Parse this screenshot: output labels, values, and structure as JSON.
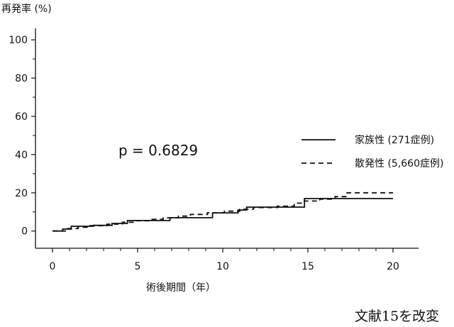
{
  "chart_data": {
    "type": "line",
    "ylabel": "再発率 (%)",
    "xlabel": "術後期間（年）",
    "x_ticks": [
      0,
      5,
      10,
      15,
      20
    ],
    "y_ticks": [
      0,
      20,
      40,
      60,
      80,
      100
    ],
    "xlim": [
      -1,
      21.5
    ],
    "ylim": [
      -9,
      106
    ],
    "grid": false,
    "legend_position": "right",
    "annotation": "p = 0.6829",
    "series": [
      {
        "name": "家族性 (271症例)",
        "style": "solid",
        "color": "#111111",
        "points": [
          [
            0,
            0
          ],
          [
            0.6,
            0
          ],
          [
            0.6,
            1
          ],
          [
            1.1,
            1
          ],
          [
            1.1,
            2.5
          ],
          [
            2.4,
            2.5
          ],
          [
            2.4,
            3
          ],
          [
            3.5,
            3
          ],
          [
            3.5,
            4
          ],
          [
            4.4,
            4
          ],
          [
            4.4,
            5.5
          ],
          [
            6.9,
            5.5
          ],
          [
            6.9,
            7
          ],
          [
            9.4,
            7
          ],
          [
            9.4,
            9.5
          ],
          [
            10.9,
            9.5
          ],
          [
            10.9,
            11
          ],
          [
            11.4,
            11
          ],
          [
            11.4,
            12.5
          ],
          [
            14.8,
            12.5
          ],
          [
            14.8,
            17
          ],
          [
            20,
            17
          ]
        ]
      },
      {
        "name": "散発性 (5,660症例)",
        "style": "dashed",
        "color": "#111111",
        "points": [
          [
            0,
            0
          ],
          [
            0.9,
            0
          ],
          [
            0.9,
            1.3
          ],
          [
            1.5,
            1.3
          ],
          [
            1.5,
            2
          ],
          [
            2.2,
            2
          ],
          [
            2.2,
            2.8
          ],
          [
            3.2,
            2.8
          ],
          [
            3.2,
            3.6
          ],
          [
            4.1,
            3.6
          ],
          [
            4.1,
            4.6
          ],
          [
            4.8,
            4.6
          ],
          [
            4.8,
            5.4
          ],
          [
            5.8,
            5.4
          ],
          [
            5.8,
            6.1
          ],
          [
            6.5,
            6.1
          ],
          [
            6.5,
            6.9
          ],
          [
            7.4,
            6.9
          ],
          [
            7.4,
            7.8
          ],
          [
            8.1,
            7.8
          ],
          [
            8.1,
            8.7
          ],
          [
            9.1,
            8.7
          ],
          [
            9.1,
            9.6
          ],
          [
            10.1,
            9.6
          ],
          [
            10.1,
            10.4
          ],
          [
            11,
            10.4
          ],
          [
            11,
            11.4
          ],
          [
            11.8,
            11.4
          ],
          [
            11.8,
            12.3
          ],
          [
            13.2,
            12.3
          ],
          [
            13.2,
            13
          ],
          [
            14.2,
            13
          ],
          [
            14.2,
            14.6
          ],
          [
            14.8,
            14.6
          ],
          [
            14.8,
            15.7
          ],
          [
            15.7,
            15.7
          ],
          [
            15.7,
            16.7
          ],
          [
            16.6,
            16.7
          ],
          [
            16.6,
            18
          ],
          [
            17.3,
            18
          ],
          [
            17.3,
            20
          ],
          [
            20,
            20
          ]
        ]
      }
    ]
  },
  "footer_note": "文献15を改変"
}
